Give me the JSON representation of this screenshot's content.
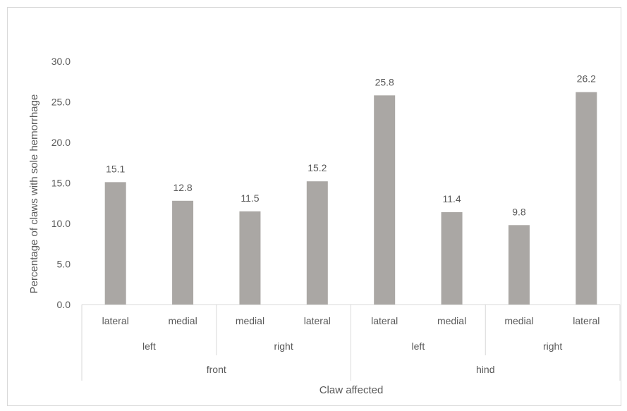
{
  "chart_data": {
    "type": "bar",
    "title": "",
    "ylabel": "Percentage of claws with sole hemorrhage",
    "xlabel": "Claw affected",
    "ylim": [
      0,
      30
    ],
    "yticks": [
      "0.0",
      "5.0",
      "10.0",
      "15.0",
      "20.0",
      "25.0",
      "30.0"
    ],
    "grid": false,
    "bar_color": "#aaa7a4",
    "categories": [
      {
        "level1": "lateral",
        "level2": "left",
        "level3": "front",
        "value": 15.1,
        "label": "15.1"
      },
      {
        "level1": "medial",
        "level2": "left",
        "level3": "front",
        "value": 12.8,
        "label": "12.8"
      },
      {
        "level1": "medial",
        "level2": "right",
        "level3": "front",
        "value": 11.5,
        "label": "11.5"
      },
      {
        "level1": "lateral",
        "level2": "right",
        "level3": "front",
        "value": 15.2,
        "label": "15.2"
      },
      {
        "level1": "lateral",
        "level2": "left",
        "level3": "hind",
        "value": 25.8,
        "label": "25.8"
      },
      {
        "level1": "medial",
        "level2": "left",
        "level3": "hind",
        "value": 11.4,
        "label": "11.4"
      },
      {
        "level1": "medial",
        "level2": "right",
        "level3": "hind",
        "value": 9.8,
        "label": "9.8"
      },
      {
        "level1": "lateral",
        "level2": "right",
        "level3": "hind",
        "value": 26.2,
        "label": "26.2"
      }
    ],
    "groups_level2": [
      "left",
      "right",
      "left",
      "right"
    ],
    "groups_level3": [
      "front",
      "hind"
    ]
  }
}
